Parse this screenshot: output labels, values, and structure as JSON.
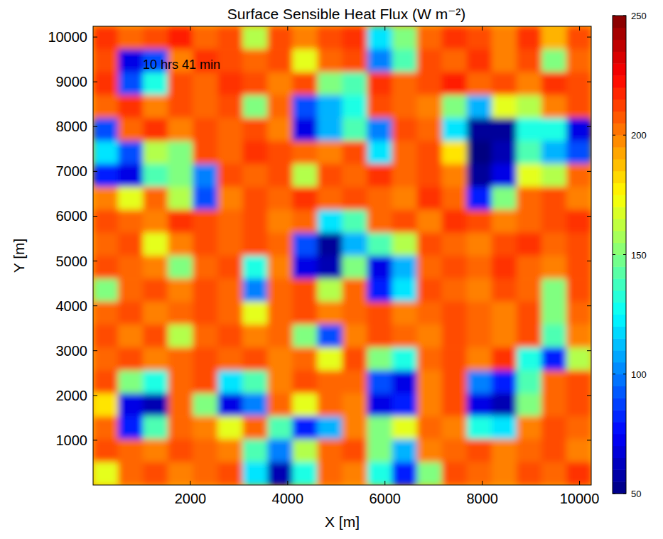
{
  "chart_data": {
    "type": "heatmap",
    "title": "Surface Sensible Heat Flux (W m⁻²)",
    "xlabel": "X [m]",
    "ylabel": "Y [m]",
    "annotations": [
      "10 hrs 41 min"
    ],
    "xlim": [
      0,
      10240
    ],
    "ylim": [
      0,
      10240
    ],
    "xticks": [
      2000,
      4000,
      6000,
      8000,
      10000
    ],
    "yticks": [
      1000,
      2000,
      3000,
      4000,
      5000,
      6000,
      7000,
      8000,
      9000,
      10000
    ],
    "z": [
      [
        215,
        205,
        210,
        220,
        205,
        210,
        160,
        210,
        200,
        210,
        215,
        120,
        150,
        205,
        215,
        210,
        200,
        215,
        190,
        210
      ],
      [
        210,
        70,
        90,
        200,
        215,
        210,
        205,
        210,
        170,
        205,
        210,
        100,
        140,
        210,
        205,
        215,
        200,
        210,
        150,
        205
      ],
      [
        215,
        90,
        130,
        210,
        205,
        215,
        210,
        200,
        210,
        150,
        140,
        215,
        205,
        210,
        220,
        205,
        210,
        200,
        215,
        210
      ],
      [
        205,
        215,
        200,
        210,
        205,
        210,
        150,
        205,
        90,
        110,
        130,
        210,
        205,
        200,
        150,
        110,
        170,
        160,
        200,
        210
      ],
      [
        90,
        205,
        215,
        200,
        210,
        205,
        210,
        200,
        70,
        110,
        140,
        100,
        210,
        205,
        120,
        55,
        55,
        130,
        130,
        70
      ],
      [
        120,
        90,
        160,
        150,
        210,
        205,
        215,
        210,
        205,
        200,
        210,
        120,
        205,
        210,
        180,
        50,
        60,
        140,
        110,
        90
      ],
      [
        80,
        70,
        140,
        150,
        100,
        210,
        205,
        210,
        160,
        210,
        205,
        215,
        205,
        210,
        200,
        55,
        70,
        170,
        160,
        205
      ],
      [
        200,
        170,
        205,
        160,
        90,
        200,
        210,
        205,
        215,
        205,
        210,
        205,
        200,
        215,
        205,
        80,
        150,
        205,
        210,
        200
      ],
      [
        210,
        205,
        200,
        215,
        210,
        205,
        210,
        200,
        205,
        120,
        140,
        205,
        210,
        200,
        215,
        210,
        200,
        205,
        210,
        215
      ],
      [
        205,
        210,
        170,
        200,
        210,
        205,
        210,
        205,
        90,
        55,
        110,
        140,
        160,
        210,
        205,
        200,
        210,
        215,
        205,
        210
      ],
      [
        210,
        205,
        200,
        150,
        205,
        210,
        130,
        200,
        70,
        60,
        150,
        70,
        110,
        205,
        210,
        205,
        215,
        205,
        200,
        210
      ],
      [
        150,
        205,
        210,
        200,
        210,
        205,
        100,
        205,
        210,
        160,
        205,
        80,
        120,
        210,
        205,
        200,
        210,
        205,
        150,
        210
      ],
      [
        205,
        210,
        200,
        205,
        210,
        205,
        170,
        205,
        210,
        200,
        205,
        210,
        200,
        205,
        210,
        205,
        200,
        210,
        150,
        205
      ],
      [
        210,
        200,
        210,
        160,
        205,
        210,
        200,
        205,
        150,
        90,
        200,
        210,
        205,
        200,
        210,
        205,
        200,
        210,
        140,
        200
      ],
      [
        205,
        210,
        200,
        205,
        210,
        205,
        210,
        200,
        205,
        170,
        210,
        150,
        130,
        205,
        210,
        200,
        215,
        130,
        80,
        160
      ],
      [
        210,
        150,
        130,
        205,
        210,
        120,
        140,
        200,
        210,
        205,
        205,
        90,
        70,
        200,
        210,
        100,
        80,
        140,
        205,
        210
      ],
      [
        180,
        70,
        60,
        205,
        150,
        70,
        100,
        205,
        170,
        205,
        200,
        70,
        80,
        200,
        210,
        70,
        60,
        150,
        205,
        210
      ],
      [
        205,
        80,
        140,
        205,
        200,
        170,
        205,
        140,
        80,
        110,
        200,
        150,
        170,
        205,
        200,
        130,
        120,
        200,
        210,
        205
      ],
      [
        210,
        205,
        200,
        210,
        205,
        200,
        140,
        100,
        160,
        205,
        210,
        150,
        110,
        200,
        205,
        210,
        200,
        205,
        210,
        200
      ],
      [
        170,
        205,
        210,
        200,
        205,
        210,
        120,
        60,
        130,
        205,
        200,
        130,
        80,
        150,
        210,
        205,
        200,
        210,
        205,
        215
      ]
    ],
    "colorbar": {
      "range": [
        50,
        250
      ],
      "ticks": [
        50,
        100,
        150,
        200,
        250
      ]
    }
  }
}
